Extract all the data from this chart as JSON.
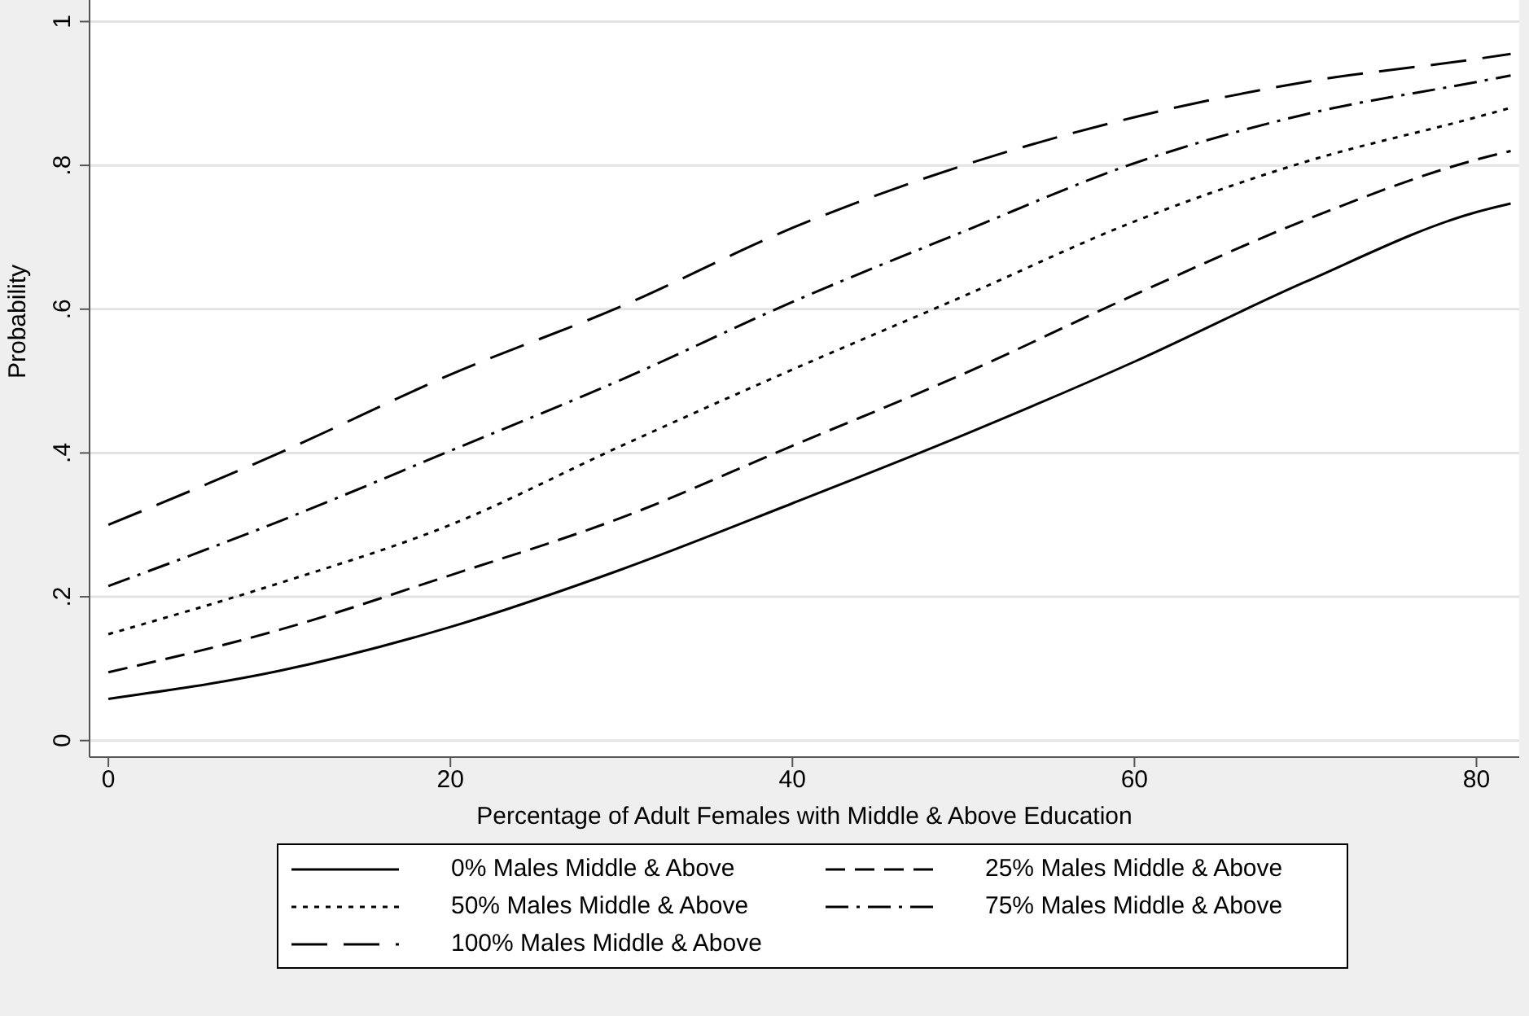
{
  "chart_data": {
    "type": "line",
    "xlabel": "Percentage of Adult Females with Middle & Above Education",
    "ylabel": "Probability",
    "x": [
      0,
      10,
      20,
      30,
      40,
      50,
      60,
      70,
      80,
      82
    ],
    "series": [
      {
        "name": "0% Males Middle & Above",
        "color": "#000000",
        "line_style": "solid",
        "values": [
          0.058,
          0.097,
          0.158,
          0.238,
          0.33,
          0.425,
          0.527,
          0.638,
          0.735,
          0.747
        ]
      },
      {
        "name": "25% Males Middle & Above",
        "color": "#000000",
        "line_style": "dashed",
        "values": [
          0.095,
          0.154,
          0.23,
          0.31,
          0.41,
          0.51,
          0.62,
          0.724,
          0.808,
          0.82
        ]
      },
      {
        "name": "50% Males Middle & Above",
        "color": "#000000",
        "line_style": "dotted",
        "values": [
          0.148,
          0.219,
          0.3,
          0.41,
          0.516,
          0.618,
          0.722,
          0.805,
          0.867,
          0.88
        ]
      },
      {
        "name": "75% Males Middle & Above",
        "color": "#000000",
        "line_style": "dashdot",
        "values": [
          0.215,
          0.305,
          0.403,
          0.502,
          0.61,
          0.708,
          0.803,
          0.871,
          0.916,
          0.925
        ]
      },
      {
        "name": "100% Males Middle & Above",
        "color": "#000000",
        "line_style": "longdash",
        "values": [
          0.3,
          0.4,
          0.509,
          0.604,
          0.713,
          0.8,
          0.867,
          0.916,
          0.948,
          0.955
        ]
      }
    ],
    "xlim": [
      -1.1,
      82.5
    ],
    "ylim": [
      -0.023,
      1.03
    ],
    "xticks": [
      0,
      20,
      40,
      60,
      80
    ],
    "yticks": [
      0,
      {
        "value": 0.2,
        "label": ".2"
      },
      {
        "value": 0.4,
        "label": ".4"
      },
      {
        "value": 0.6,
        "label": ".6"
      },
      {
        "value": 0.8,
        "label": ".8"
      },
      1
    ],
    "grid": "y",
    "legend": "bottom",
    "marker": "none"
  }
}
